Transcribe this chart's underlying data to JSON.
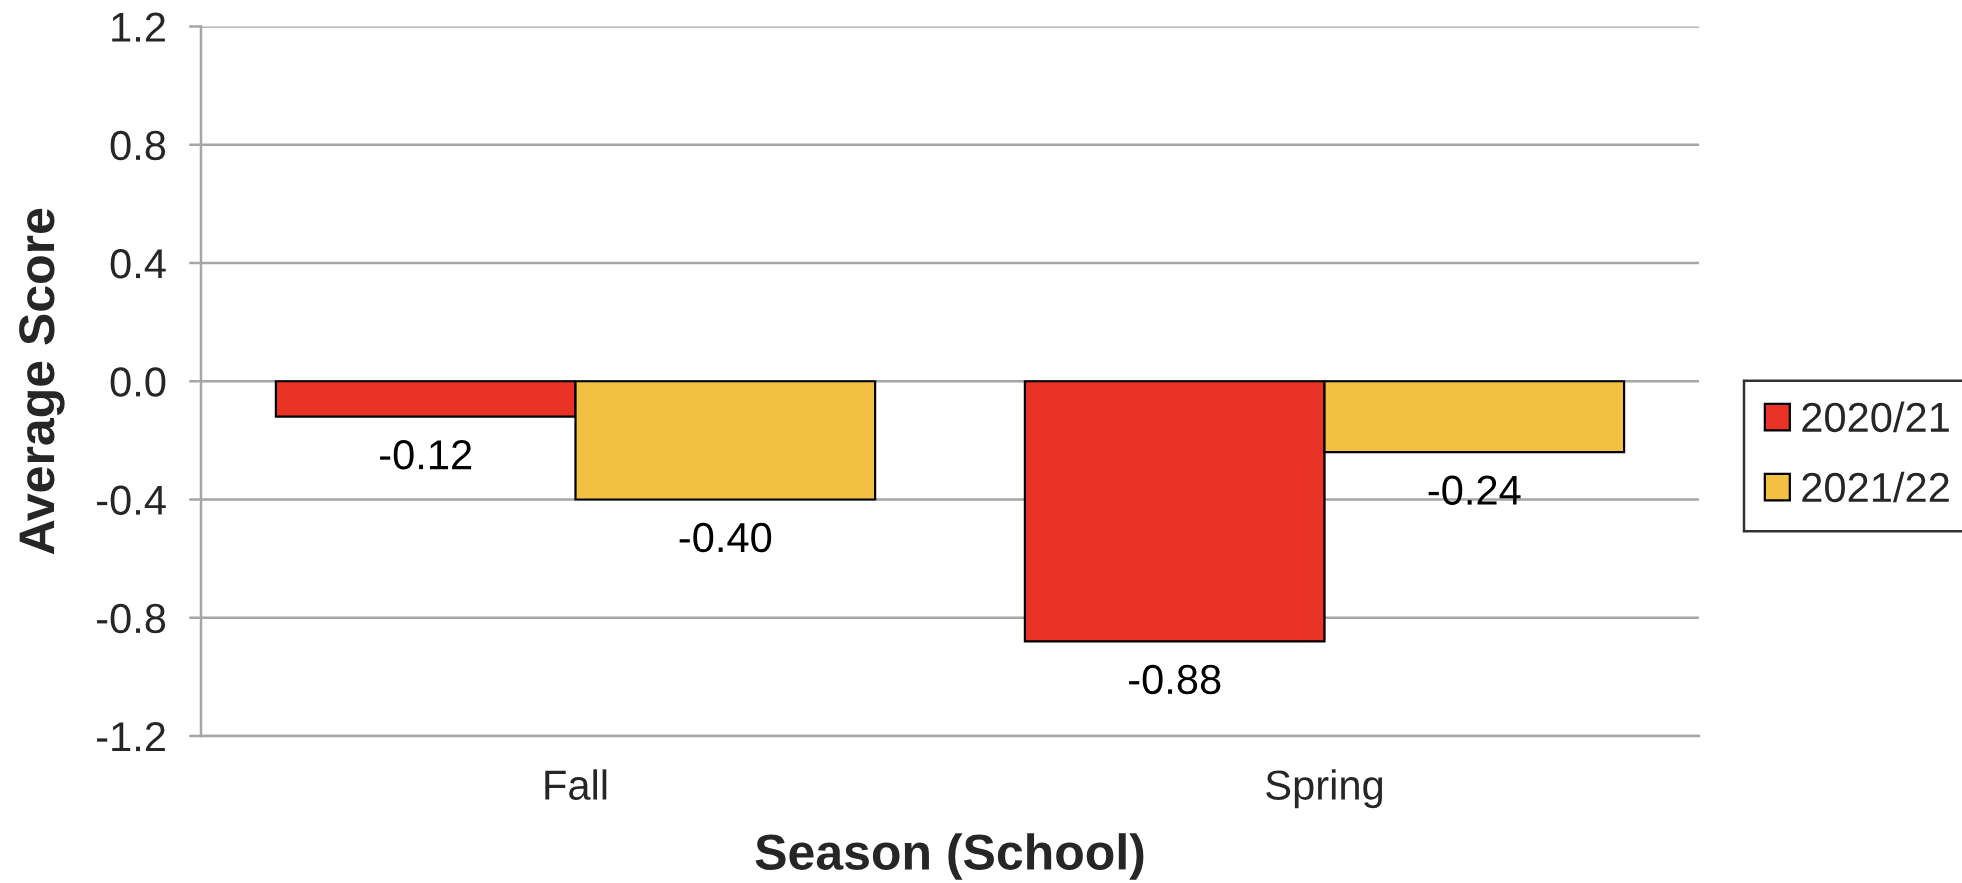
{
  "chart_data": {
    "type": "bar",
    "xlabel": "Season (School)",
    "ylabel": "Average Score",
    "categories": [
      "Fall",
      "Spring"
    ],
    "series": [
      {
        "name": "2020/21",
        "color": "#e83326",
        "values": [
          -0.12,
          -0.88
        ],
        "value_labels": [
          "-0.12",
          "-0.88"
        ]
      },
      {
        "name": "2021/22",
        "color": "#f2c043",
        "values": [
          -0.4,
          -0.24
        ],
        "value_labels": [
          "-0.40",
          "-0.24"
        ]
      }
    ],
    "ylim": [
      -1.2,
      1.2
    ],
    "yticks": [
      -1.2,
      -0.8,
      -0.4,
      {
        "value": 0,
        "label": "0.0"
      },
      0.4,
      0.8,
      1.2
    ],
    "grid": "y",
    "legend": "right"
  }
}
